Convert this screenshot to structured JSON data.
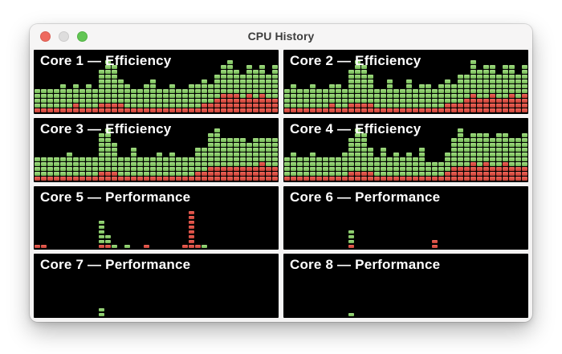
{
  "window": {
    "title": "CPU History",
    "controls": {
      "close": "close",
      "minimize": "minimize (disabled)",
      "zoom": "zoom"
    }
  },
  "colors": {
    "user_green": "#8acb6a",
    "system_red": "#dd4f44",
    "panel_background": "#000000",
    "titlebar_background": "#f6f5f5",
    "close_red": "#ee6a5f",
    "minimize_gray": "#dedddd",
    "zoom_green": "#62c554"
  },
  "chart_data": [
    {
      "type": "bar",
      "title": "Core 1 — Efficiency",
      "note": "segmented CPU load history; columns = [green user cells, red system cells] stacked bottom-up, red at bottom",
      "cell_rows_max": 13,
      "columns": [
        [
          4,
          1
        ],
        [
          4,
          1
        ],
        [
          4,
          1
        ],
        [
          4,
          1
        ],
        [
          5,
          1
        ],
        [
          4,
          1
        ],
        [
          4,
          2
        ],
        [
          4,
          1
        ],
        [
          5,
          1
        ],
        [
          4,
          1
        ],
        [
          7,
          2
        ],
        [
          9,
          2
        ],
        [
          8,
          2
        ],
        [
          5,
          2
        ],
        [
          5,
          1
        ],
        [
          4,
          1
        ],
        [
          4,
          1
        ],
        [
          5,
          1
        ],
        [
          6,
          1
        ],
        [
          4,
          1
        ],
        [
          4,
          1
        ],
        [
          5,
          1
        ],
        [
          4,
          1
        ],
        [
          4,
          1
        ],
        [
          5,
          1
        ],
        [
          5,
          1
        ],
        [
          5,
          2
        ],
        [
          4,
          2
        ],
        [
          5,
          3
        ],
        [
          6,
          4
        ],
        [
          7,
          4
        ],
        [
          5,
          4
        ],
        [
          5,
          3
        ],
        [
          6,
          4
        ],
        [
          6,
          3
        ],
        [
          6,
          4
        ],
        [
          5,
          3
        ],
        [
          7,
          3
        ]
      ]
    },
    {
      "type": "bar",
      "title": "Core 2 — Efficiency",
      "cell_rows_max": 13,
      "columns": [
        [
          4,
          1
        ],
        [
          5,
          1
        ],
        [
          4,
          1
        ],
        [
          4,
          1
        ],
        [
          5,
          1
        ],
        [
          4,
          1
        ],
        [
          4,
          1
        ],
        [
          4,
          2
        ],
        [
          5,
          1
        ],
        [
          4,
          1
        ],
        [
          7,
          2
        ],
        [
          9,
          2
        ],
        [
          8,
          2
        ],
        [
          6,
          2
        ],
        [
          4,
          1
        ],
        [
          4,
          1
        ],
        [
          6,
          1
        ],
        [
          4,
          1
        ],
        [
          4,
          1
        ],
        [
          6,
          1
        ],
        [
          4,
          1
        ],
        [
          5,
          1
        ],
        [
          5,
          1
        ],
        [
          4,
          1
        ],
        [
          5,
          1
        ],
        [
          5,
          2
        ],
        [
          4,
          2
        ],
        [
          6,
          2
        ],
        [
          5,
          3
        ],
        [
          7,
          4
        ],
        [
          6,
          3
        ],
        [
          7,
          3
        ],
        [
          6,
          4
        ],
        [
          5,
          3
        ],
        [
          7,
          3
        ],
        [
          6,
          4
        ],
        [
          5,
          3
        ],
        [
          6,
          4
        ]
      ]
    },
    {
      "type": "bar",
      "title": "Core 3 — Efficiency",
      "cell_rows_max": 13,
      "columns": [
        [
          4,
          1
        ],
        [
          4,
          1
        ],
        [
          4,
          1
        ],
        [
          4,
          1
        ],
        [
          4,
          1
        ],
        [
          5,
          1
        ],
        [
          4,
          1
        ],
        [
          4,
          1
        ],
        [
          4,
          1
        ],
        [
          4,
          1
        ],
        [
          8,
          2
        ],
        [
          9,
          2
        ],
        [
          6,
          2
        ],
        [
          4,
          1
        ],
        [
          4,
          1
        ],
        [
          6,
          1
        ],
        [
          4,
          1
        ],
        [
          4,
          1
        ],
        [
          4,
          1
        ],
        [
          5,
          1
        ],
        [
          4,
          1
        ],
        [
          5,
          1
        ],
        [
          4,
          1
        ],
        [
          4,
          1
        ],
        [
          4,
          1
        ],
        [
          5,
          2
        ],
        [
          5,
          2
        ],
        [
          7,
          3
        ],
        [
          8,
          3
        ],
        [
          6,
          3
        ],
        [
          6,
          3
        ],
        [
          6,
          3
        ],
        [
          6,
          3
        ],
        [
          5,
          3
        ],
        [
          6,
          3
        ],
        [
          5,
          4
        ],
        [
          6,
          3
        ],
        [
          6,
          3
        ]
      ]
    },
    {
      "type": "bar",
      "title": "Core 4 — Efficiency",
      "cell_rows_max": 13,
      "columns": [
        [
          4,
          1
        ],
        [
          5,
          1
        ],
        [
          4,
          1
        ],
        [
          4,
          1
        ],
        [
          5,
          1
        ],
        [
          4,
          1
        ],
        [
          4,
          1
        ],
        [
          4,
          1
        ],
        [
          4,
          1
        ],
        [
          5,
          1
        ],
        [
          7,
          2
        ],
        [
          9,
          2
        ],
        [
          8,
          2
        ],
        [
          5,
          2
        ],
        [
          4,
          1
        ],
        [
          6,
          1
        ],
        [
          4,
          1
        ],
        [
          5,
          1
        ],
        [
          4,
          1
        ],
        [
          5,
          1
        ],
        [
          4,
          1
        ],
        [
          6,
          1
        ],
        [
          3,
          1
        ],
        [
          3,
          1
        ],
        [
          3,
          1
        ],
        [
          4,
          2
        ],
        [
          6,
          3
        ],
        [
          8,
          3
        ],
        [
          6,
          3
        ],
        [
          6,
          4
        ],
        [
          7,
          3
        ],
        [
          6,
          4
        ],
        [
          6,
          3
        ],
        [
          7,
          3
        ],
        [
          6,
          4
        ],
        [
          6,
          3
        ],
        [
          6,
          3
        ],
        [
          7,
          3
        ]
      ]
    },
    {
      "type": "bar",
      "title": "Core 5 — Performance",
      "cell_rows_max": 13,
      "columns": [
        [
          0,
          1
        ],
        [
          0,
          1
        ],
        [
          0,
          0
        ],
        [
          0,
          0
        ],
        [
          0,
          0
        ],
        [
          0,
          0
        ],
        [
          0,
          0
        ],
        [
          0,
          0
        ],
        [
          0,
          0
        ],
        [
          0,
          0
        ],
        [
          5,
          1
        ],
        [
          2,
          1
        ],
        [
          1,
          0
        ],
        [
          0,
          0
        ],
        [
          1,
          0
        ],
        [
          0,
          0
        ],
        [
          0,
          0
        ],
        [
          0,
          1
        ],
        [
          0,
          0
        ],
        [
          0,
          0
        ],
        [
          0,
          0
        ],
        [
          0,
          0
        ],
        [
          0,
          0
        ],
        [
          0,
          1
        ],
        [
          0,
          8
        ],
        [
          0,
          1
        ],
        [
          1,
          0
        ],
        [
          0,
          0
        ],
        [
          0,
          0
        ],
        [
          0,
          0
        ],
        [
          0,
          0
        ],
        [
          0,
          0
        ],
        [
          0,
          0
        ],
        [
          0,
          0
        ],
        [
          0,
          0
        ],
        [
          0,
          0
        ],
        [
          0,
          0
        ],
        [
          0,
          0
        ]
      ]
    },
    {
      "type": "bar",
      "title": "Core 6 — Performance",
      "cell_rows_max": 13,
      "columns": [
        [
          0,
          0
        ],
        [
          0,
          0
        ],
        [
          0,
          0
        ],
        [
          0,
          0
        ],
        [
          0,
          0
        ],
        [
          0,
          0
        ],
        [
          0,
          0
        ],
        [
          0,
          0
        ],
        [
          0,
          0
        ],
        [
          0,
          0
        ],
        [
          3,
          1
        ],
        [
          0,
          0
        ],
        [
          0,
          0
        ],
        [
          0,
          0
        ],
        [
          0,
          0
        ],
        [
          0,
          0
        ],
        [
          0,
          0
        ],
        [
          0,
          0
        ],
        [
          0,
          0
        ],
        [
          0,
          0
        ],
        [
          0,
          0
        ],
        [
          0,
          0
        ],
        [
          0,
          0
        ],
        [
          0,
          2
        ],
        [
          0,
          0
        ],
        [
          0,
          0
        ],
        [
          0,
          0
        ],
        [
          0,
          0
        ],
        [
          0,
          0
        ],
        [
          0,
          0
        ],
        [
          0,
          0
        ],
        [
          0,
          0
        ],
        [
          0,
          0
        ],
        [
          0,
          0
        ],
        [
          0,
          0
        ],
        [
          0,
          0
        ],
        [
          0,
          0
        ],
        [
          0,
          0
        ]
      ]
    },
    {
      "type": "bar",
      "title": "Core 7 — Performance",
      "cell_rows_max": 13,
      "columns": [
        [
          0,
          0
        ],
        [
          0,
          0
        ],
        [
          0,
          0
        ],
        [
          0,
          0
        ],
        [
          0,
          0
        ],
        [
          0,
          0
        ],
        [
          0,
          0
        ],
        [
          0,
          0
        ],
        [
          0,
          0
        ],
        [
          0,
          0
        ],
        [
          2,
          0
        ],
        [
          0,
          0
        ],
        [
          0,
          0
        ],
        [
          0,
          0
        ],
        [
          0,
          0
        ],
        [
          0,
          0
        ],
        [
          0,
          0
        ],
        [
          0,
          0
        ],
        [
          0,
          0
        ],
        [
          0,
          0
        ],
        [
          0,
          0
        ],
        [
          0,
          0
        ],
        [
          0,
          0
        ],
        [
          0,
          0
        ],
        [
          0,
          0
        ],
        [
          0,
          0
        ],
        [
          0,
          0
        ],
        [
          0,
          0
        ],
        [
          0,
          0
        ],
        [
          0,
          0
        ],
        [
          0,
          0
        ],
        [
          0,
          0
        ],
        [
          0,
          0
        ],
        [
          0,
          0
        ],
        [
          0,
          0
        ],
        [
          0,
          0
        ],
        [
          0,
          0
        ],
        [
          0,
          0
        ]
      ]
    },
    {
      "type": "bar",
      "title": "Core 8 — Performance",
      "cell_rows_max": 13,
      "columns": [
        [
          0,
          0
        ],
        [
          0,
          0
        ],
        [
          0,
          0
        ],
        [
          0,
          0
        ],
        [
          0,
          0
        ],
        [
          0,
          0
        ],
        [
          0,
          0
        ],
        [
          0,
          0
        ],
        [
          0,
          0
        ],
        [
          0,
          0
        ],
        [
          1,
          0
        ],
        [
          0,
          0
        ],
        [
          0,
          0
        ],
        [
          0,
          0
        ],
        [
          0,
          0
        ],
        [
          0,
          0
        ],
        [
          0,
          0
        ],
        [
          0,
          0
        ],
        [
          0,
          0
        ],
        [
          0,
          0
        ],
        [
          0,
          0
        ],
        [
          0,
          0
        ],
        [
          0,
          0
        ],
        [
          0,
          0
        ],
        [
          0,
          0
        ],
        [
          0,
          0
        ],
        [
          0,
          0
        ],
        [
          0,
          0
        ],
        [
          0,
          0
        ],
        [
          0,
          0
        ],
        [
          0,
          0
        ],
        [
          0,
          0
        ],
        [
          0,
          0
        ],
        [
          0,
          0
        ],
        [
          0,
          0
        ],
        [
          0,
          0
        ],
        [
          0,
          0
        ],
        [
          0,
          0
        ]
      ]
    }
  ]
}
